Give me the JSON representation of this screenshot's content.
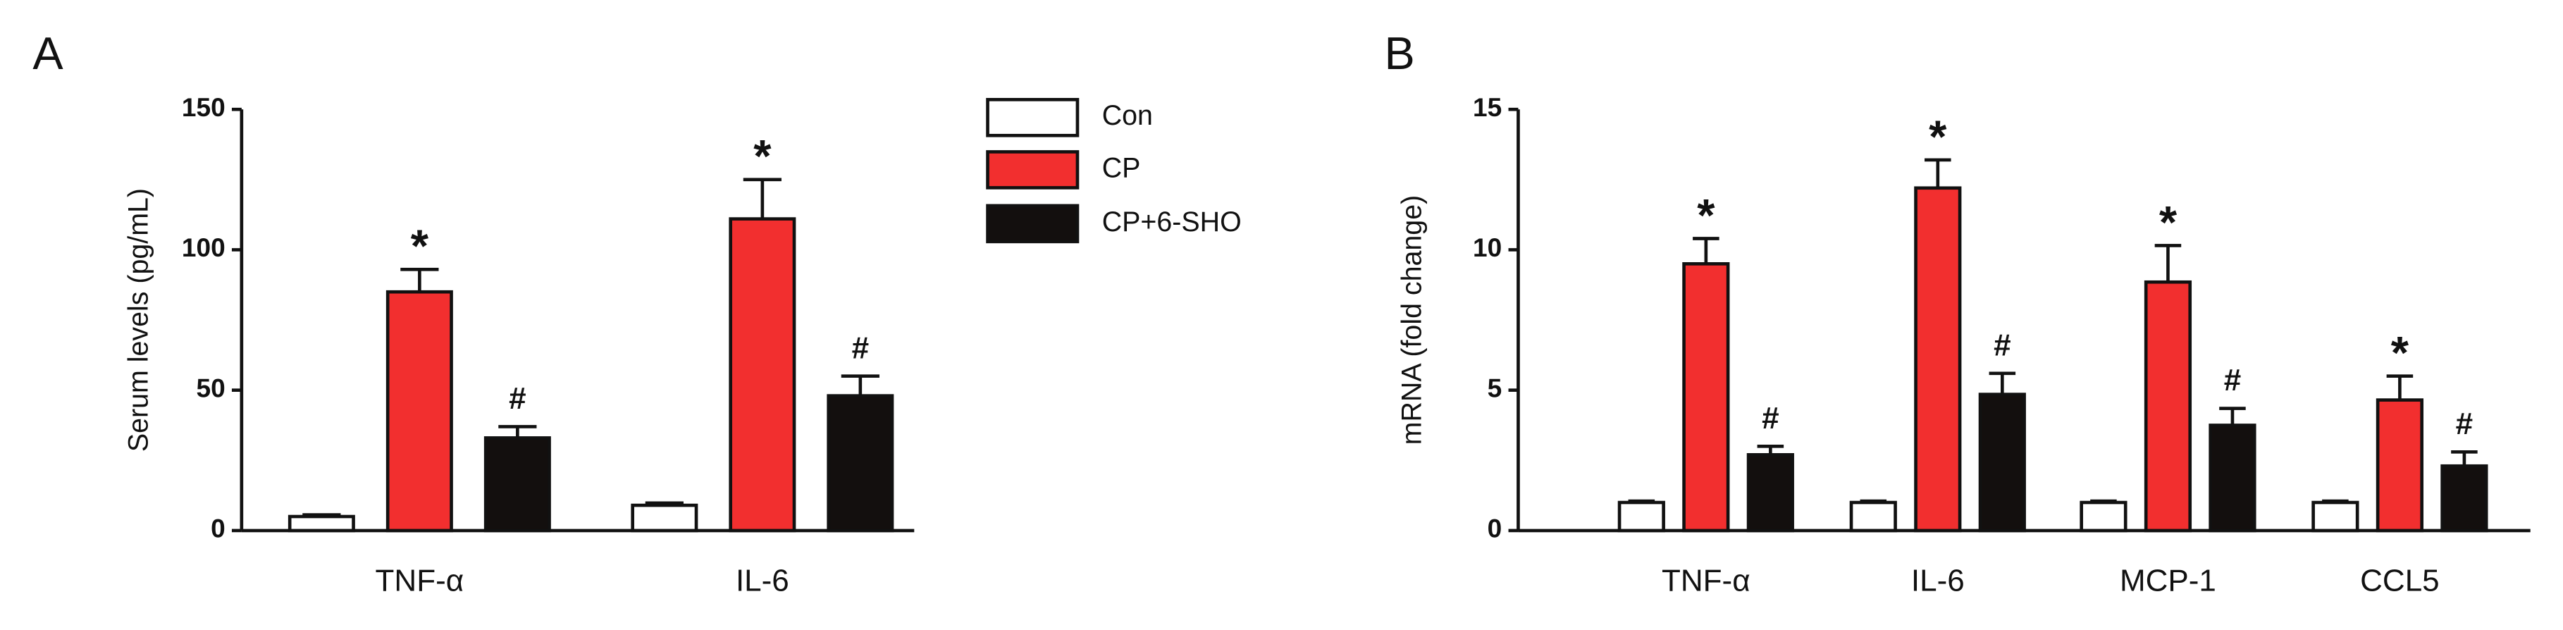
{
  "chart_data": [
    {
      "type": "bar",
      "panel": "A",
      "ylabel": "Serum levels (pg/mL)",
      "categories": [
        "TNF-α",
        "IL-6"
      ],
      "ylim": [
        0,
        150
      ],
      "yticks": [
        0,
        50,
        100,
        150
      ],
      "legend": true,
      "series": [
        {
          "name": "Con",
          "color": "#ffffff",
          "values": [
            5,
            9
          ],
          "errors": [
            0.6,
            0.8
          ]
        },
        {
          "name": "CP",
          "color": "#f22f2f",
          "values": [
            85,
            111
          ],
          "errors": [
            8,
            14
          ],
          "annotations": [
            "*",
            "*"
          ]
        },
        {
          "name": "CP+6-SHO",
          "color": "#130f0e",
          "values": [
            33,
            48
          ],
          "errors": [
            4,
            7
          ],
          "annotations": [
            "#",
            "#"
          ]
        }
      ]
    },
    {
      "type": "bar",
      "panel": "B",
      "ylabel": "mRNA (fold change)",
      "categories": [
        "TNF-α",
        "IL-6",
        "MCP-1",
        "CCL5"
      ],
      "ylim": [
        0,
        15
      ],
      "yticks": [
        0,
        5,
        10,
        15
      ],
      "legend": false,
      "series": [
        {
          "color": "#ffffff",
          "values": [
            1,
            1,
            1,
            1
          ],
          "errors": [
            0.05,
            0.05,
            0.05,
            0.05
          ]
        },
        {
          "color": "#f22f2f",
          "values": [
            9.5,
            12.2,
            8.85,
            4.65
          ],
          "errors": [
            0.9,
            1.0,
            1.3,
            0.85
          ],
          "annotations": [
            "*",
            "*",
            "*",
            "*"
          ]
        },
        {
          "color": "#130f0e",
          "values": [
            2.7,
            4.85,
            3.75,
            2.3
          ],
          "errors": [
            0.3,
            0.75,
            0.6,
            0.5
          ],
          "annotations": [
            "#",
            "#",
            "#",
            "#"
          ]
        }
      ]
    }
  ]
}
